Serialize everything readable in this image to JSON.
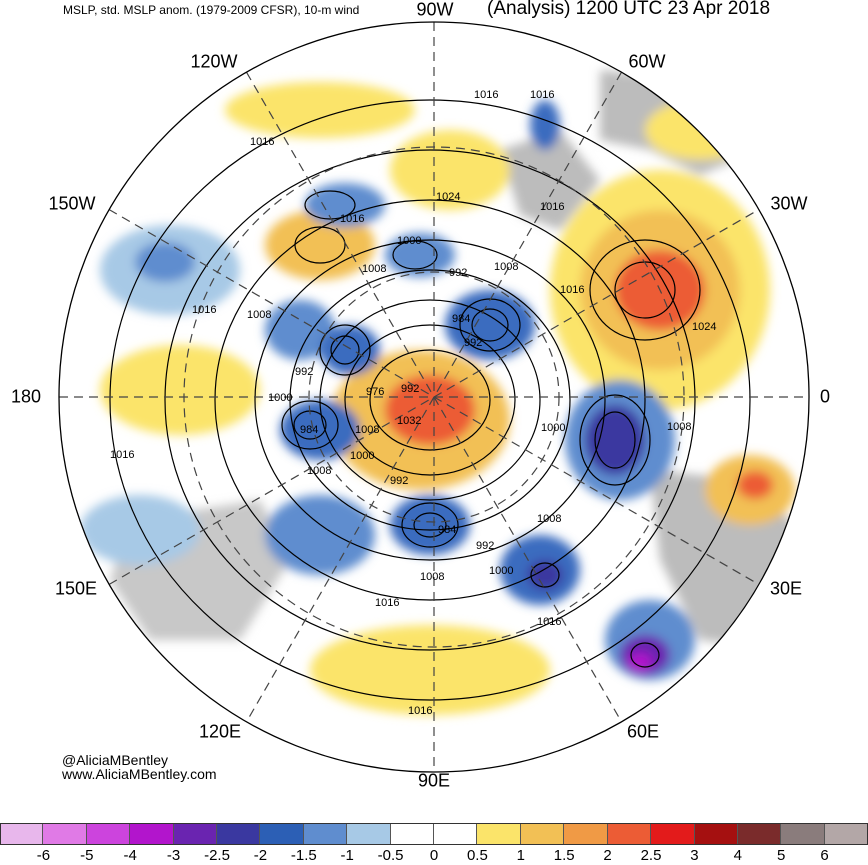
{
  "header": {
    "left_title": "MSLP, std. MSLP anom. (1979-2009 CFSR), 10-m wind",
    "right_title": "(Analysis) 1200 UTC 23 Apr 2018",
    "top_lon": "90W"
  },
  "credit": {
    "handle": "@AliciaMBentley",
    "site": "www.AliciaMBentley.com"
  },
  "longitudes": {
    "w120": "120W",
    "w60": "60W",
    "w150": "150W",
    "w30": "30W",
    "l180": "180",
    "l0": "0",
    "e150": "150E",
    "e30": "30E",
    "e120": "120E",
    "e60": "60E",
    "e90": "90E"
  },
  "isobars": [
    "1016",
    "1016",
    "1016",
    "1024",
    "1016",
    "1016",
    "1000",
    "1008",
    "992",
    "1008",
    "1016",
    "1008",
    "984",
    "992",
    "1016",
    "1024",
    "992",
    "976",
    "992",
    "1000",
    "984",
    "1008",
    "1032",
    "1000",
    "1000",
    "1008",
    "1016",
    "1008",
    "992",
    "1008",
    "984",
    "992",
    "1000",
    "1016",
    "1008",
    "1016",
    "1016"
  ],
  "colorbar": {
    "colors": [
      "#e8b7ec",
      "#e07ae6",
      "#cc44dd",
      "#b215cc",
      "#6a24b0",
      "#3a38a0",
      "#2c5fb5",
      "#5f8dcf",
      "#a7c9e6",
      "#ffffff",
      "#ffffff",
      "#fbe46a",
      "#f2c055",
      "#f09a45",
      "#ec5c35",
      "#e31b1b",
      "#a51010",
      "#7a2b2b",
      "#8a7c7c",
      "#b3a7a7"
    ],
    "ticks": [
      "-6",
      "-5",
      "-4",
      "-3",
      "-2.5",
      "-2",
      "-1.5",
      "-1",
      "-0.5",
      "0",
      "0.5",
      "1",
      "1.5",
      "2",
      "2.5",
      "3",
      "4",
      "5",
      "6"
    ]
  },
  "anomaly_colors": {
    "strong_negative": "#6a24b0",
    "negative": "#3a6cbf",
    "weak_negative": "#a7c9e6",
    "weak_positive": "#fbe46a",
    "positive": "#f2c055",
    "strong_positive": "#ec5c35",
    "land": "#bcbcbc"
  }
}
